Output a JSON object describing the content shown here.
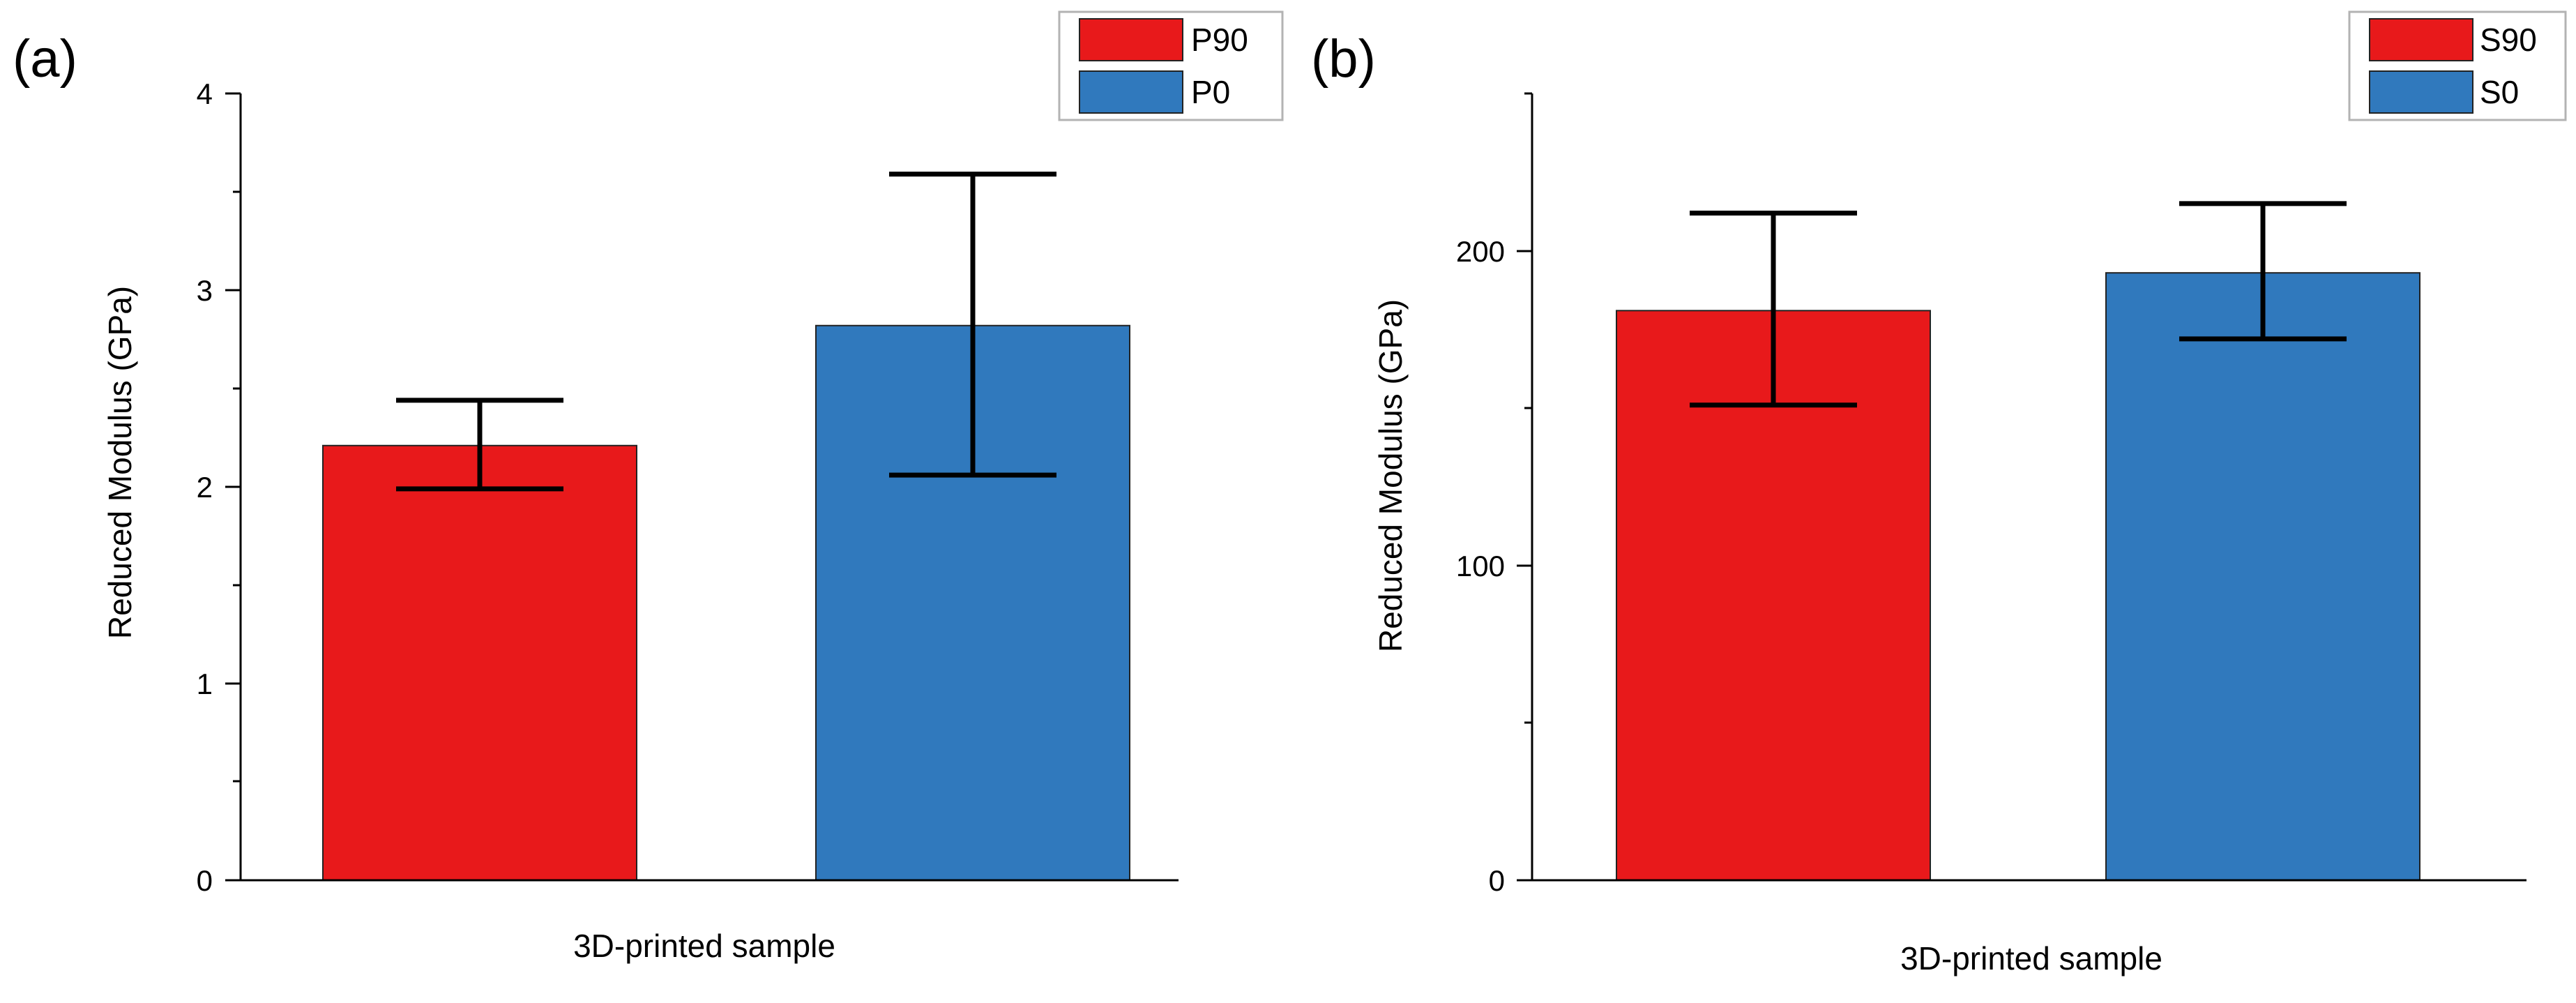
{
  "chart_data": [
    {
      "type": "bar",
      "panel_label": "(a)",
      "xlabel": "3D-printed sample",
      "ylabel": "Reduced Modulus (GPa)",
      "ylim": [
        0,
        4
      ],
      "yticks": [
        "0",
        "1",
        "2",
        "3",
        "4"
      ],
      "grid": false,
      "legend_position": "top-right",
      "series": [
        {
          "name": "P90",
          "value": 2.21,
          "error_low": 1.99,
          "error_high": 2.44,
          "color": "#e8191b"
        },
        {
          "name": "P0",
          "value": 2.82,
          "error_low": 2.06,
          "error_high": 3.59,
          "color": "#3079bd"
        }
      ]
    },
    {
      "type": "bar",
      "panel_label": "(b)",
      "xlabel": "3D-printed sample",
      "ylabel": "Reduced Modulus (GPa)",
      "ylim": [
        0,
        250
      ],
      "yticks": [
        "0",
        "100",
        "200"
      ],
      "minor_ticks": [
        50,
        150,
        250
      ],
      "grid": false,
      "legend_position": "top-right",
      "series": [
        {
          "name": "S90",
          "value": 181,
          "error_low": 151,
          "error_high": 212,
          "color": "#e8191b"
        },
        {
          "name": "S0",
          "value": 193,
          "error_low": 172,
          "error_high": 215,
          "color": "#3079bd"
        }
      ]
    }
  ]
}
